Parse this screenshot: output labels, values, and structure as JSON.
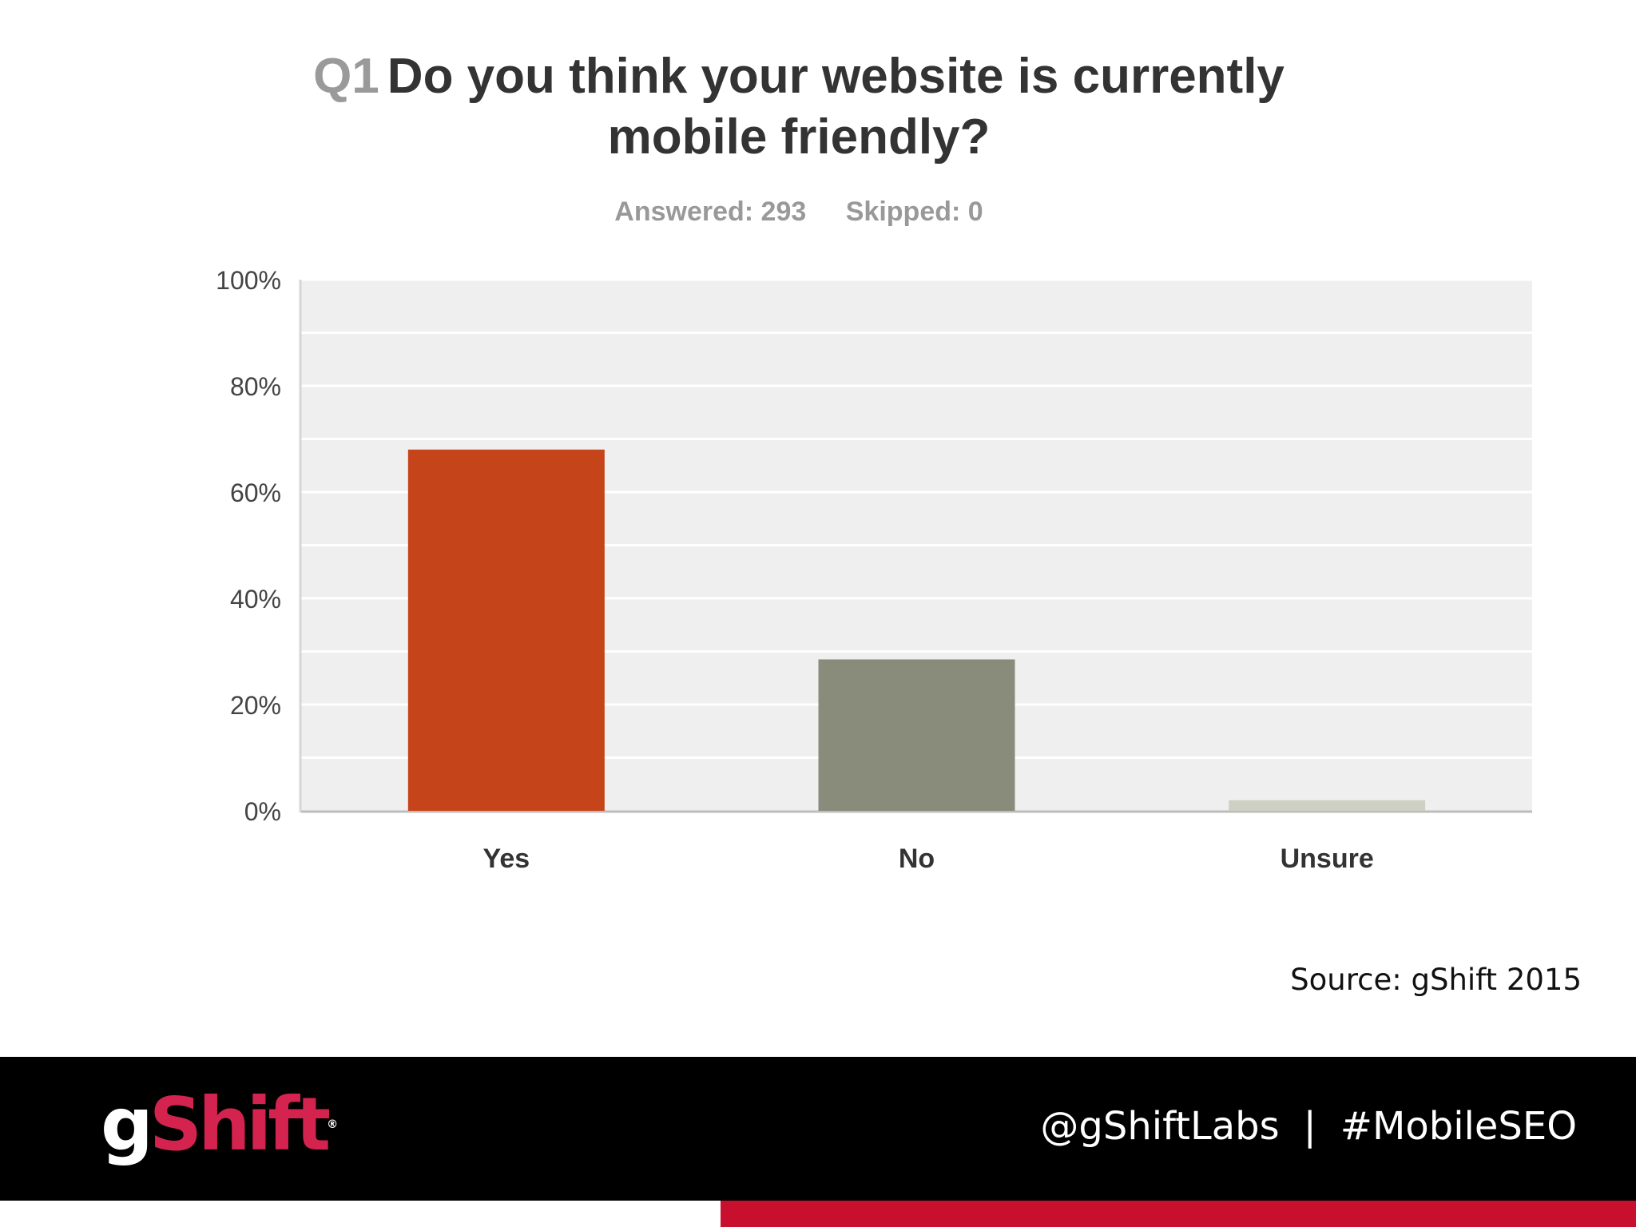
{
  "question": {
    "number": "Q1",
    "line1": "Do you think your website is currently",
    "line2": "mobile friendly?"
  },
  "stats": {
    "answered": "Answered: 293",
    "skipped": "Skipped: 0"
  },
  "chart_data": {
    "type": "bar",
    "categories": [
      "Yes",
      "No",
      "Unsure"
    ],
    "values": [
      68,
      28.5,
      2
    ],
    "colors": [
      "#c5441a",
      "#898b7b",
      "#cfd0c4"
    ],
    "yticks": [
      "0%",
      "20%",
      "40%",
      "60%",
      "80%",
      "100%"
    ],
    "ylim": [
      0,
      100
    ],
    "grid": true,
    "plot_background": "#efefef"
  },
  "source": "Source: gShift 2015",
  "footer": {
    "logo_g": "g",
    "logo_rest": "Shift",
    "logo_mark": "®",
    "handle": "@gShiftLabs",
    "separator": "|",
    "hashtag": "#MobileSEO",
    "accent_color": "#c8102e"
  }
}
